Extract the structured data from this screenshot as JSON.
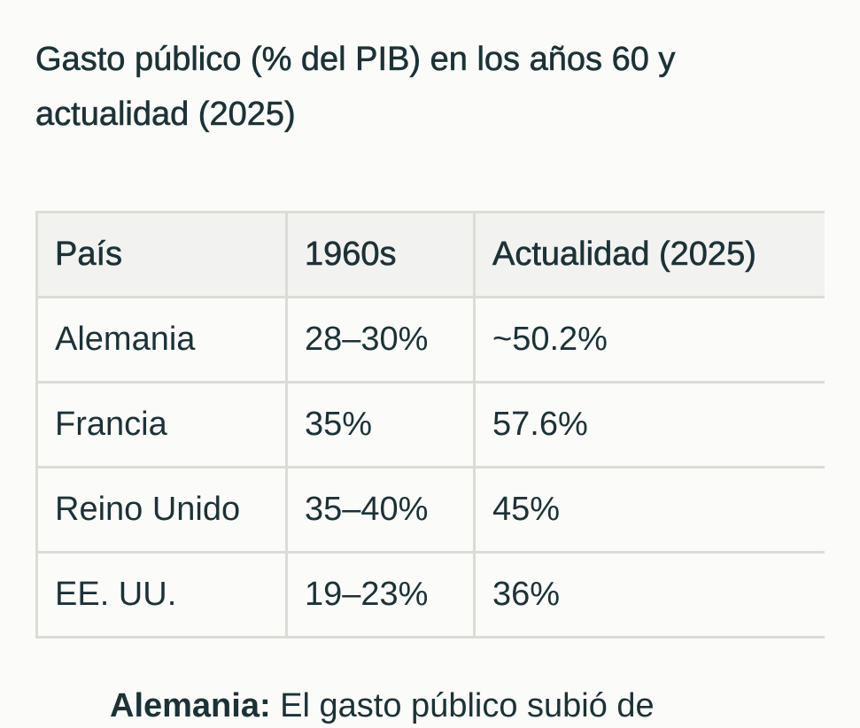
{
  "title": "Gasto público (% del PIB) en los años 60 y actualidad (2025)",
  "table": {
    "headers": [
      "País",
      "1960s",
      "Actualidad (2025)"
    ],
    "rows": [
      [
        "Alemania",
        "28–30%",
        "~50.2%"
      ],
      [
        "Francia",
        "35%",
        "57.6%"
      ],
      [
        "Reino Unido",
        "35–40%",
        "45%"
      ],
      [
        "EE. UU.",
        "19–23%",
        "36%"
      ]
    ]
  },
  "footer": {
    "bold_lead": "Alemania:",
    "text": " El gasto público subió de"
  }
}
